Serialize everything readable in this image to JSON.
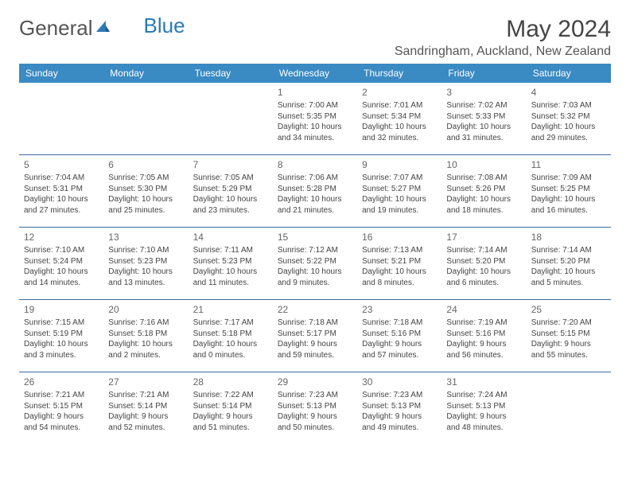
{
  "logo": {
    "text1": "General",
    "text2": "Blue"
  },
  "title": "May 2024",
  "location": "Sandringham, Auckland, New Zealand",
  "colors": {
    "header_bg": "#3a8ac3",
    "header_text": "#ffffff",
    "row_border": "#3a6a9a",
    "day_num": "#666666",
    "body_text": "#444444",
    "logo_gray": "#555555",
    "logo_blue": "#2a7ab8"
  },
  "day_headers": [
    "Sunday",
    "Monday",
    "Tuesday",
    "Wednesday",
    "Thursday",
    "Friday",
    "Saturday"
  ],
  "weeks": [
    [
      {
        "num": "",
        "sunrise": "",
        "sunset": "",
        "daylight": ""
      },
      {
        "num": "",
        "sunrise": "",
        "sunset": "",
        "daylight": ""
      },
      {
        "num": "",
        "sunrise": "",
        "sunset": "",
        "daylight": ""
      },
      {
        "num": "1",
        "sunrise": "Sunrise: 7:00 AM",
        "sunset": "Sunset: 5:35 PM",
        "daylight": "Daylight: 10 hours and 34 minutes."
      },
      {
        "num": "2",
        "sunrise": "Sunrise: 7:01 AM",
        "sunset": "Sunset: 5:34 PM",
        "daylight": "Daylight: 10 hours and 32 minutes."
      },
      {
        "num": "3",
        "sunrise": "Sunrise: 7:02 AM",
        "sunset": "Sunset: 5:33 PM",
        "daylight": "Daylight: 10 hours and 31 minutes."
      },
      {
        "num": "4",
        "sunrise": "Sunrise: 7:03 AM",
        "sunset": "Sunset: 5:32 PM",
        "daylight": "Daylight: 10 hours and 29 minutes."
      }
    ],
    [
      {
        "num": "5",
        "sunrise": "Sunrise: 7:04 AM",
        "sunset": "Sunset: 5:31 PM",
        "daylight": "Daylight: 10 hours and 27 minutes."
      },
      {
        "num": "6",
        "sunrise": "Sunrise: 7:05 AM",
        "sunset": "Sunset: 5:30 PM",
        "daylight": "Daylight: 10 hours and 25 minutes."
      },
      {
        "num": "7",
        "sunrise": "Sunrise: 7:05 AM",
        "sunset": "Sunset: 5:29 PM",
        "daylight": "Daylight: 10 hours and 23 minutes."
      },
      {
        "num": "8",
        "sunrise": "Sunrise: 7:06 AM",
        "sunset": "Sunset: 5:28 PM",
        "daylight": "Daylight: 10 hours and 21 minutes."
      },
      {
        "num": "9",
        "sunrise": "Sunrise: 7:07 AM",
        "sunset": "Sunset: 5:27 PM",
        "daylight": "Daylight: 10 hours and 19 minutes."
      },
      {
        "num": "10",
        "sunrise": "Sunrise: 7:08 AM",
        "sunset": "Sunset: 5:26 PM",
        "daylight": "Daylight: 10 hours and 18 minutes."
      },
      {
        "num": "11",
        "sunrise": "Sunrise: 7:09 AM",
        "sunset": "Sunset: 5:25 PM",
        "daylight": "Daylight: 10 hours and 16 minutes."
      }
    ],
    [
      {
        "num": "12",
        "sunrise": "Sunrise: 7:10 AM",
        "sunset": "Sunset: 5:24 PM",
        "daylight": "Daylight: 10 hours and 14 minutes."
      },
      {
        "num": "13",
        "sunrise": "Sunrise: 7:10 AM",
        "sunset": "Sunset: 5:23 PM",
        "daylight": "Daylight: 10 hours and 13 minutes."
      },
      {
        "num": "14",
        "sunrise": "Sunrise: 7:11 AM",
        "sunset": "Sunset: 5:23 PM",
        "daylight": "Daylight: 10 hours and 11 minutes."
      },
      {
        "num": "15",
        "sunrise": "Sunrise: 7:12 AM",
        "sunset": "Sunset: 5:22 PM",
        "daylight": "Daylight: 10 hours and 9 minutes."
      },
      {
        "num": "16",
        "sunrise": "Sunrise: 7:13 AM",
        "sunset": "Sunset: 5:21 PM",
        "daylight": "Daylight: 10 hours and 8 minutes."
      },
      {
        "num": "17",
        "sunrise": "Sunrise: 7:14 AM",
        "sunset": "Sunset: 5:20 PM",
        "daylight": "Daylight: 10 hours and 6 minutes."
      },
      {
        "num": "18",
        "sunrise": "Sunrise: 7:14 AM",
        "sunset": "Sunset: 5:20 PM",
        "daylight": "Daylight: 10 hours and 5 minutes."
      }
    ],
    [
      {
        "num": "19",
        "sunrise": "Sunrise: 7:15 AM",
        "sunset": "Sunset: 5:19 PM",
        "daylight": "Daylight: 10 hours and 3 minutes."
      },
      {
        "num": "20",
        "sunrise": "Sunrise: 7:16 AM",
        "sunset": "Sunset: 5:18 PM",
        "daylight": "Daylight: 10 hours and 2 minutes."
      },
      {
        "num": "21",
        "sunrise": "Sunrise: 7:17 AM",
        "sunset": "Sunset: 5:18 PM",
        "daylight": "Daylight: 10 hours and 0 minutes."
      },
      {
        "num": "22",
        "sunrise": "Sunrise: 7:18 AM",
        "sunset": "Sunset: 5:17 PM",
        "daylight": "Daylight: 9 hours and 59 minutes."
      },
      {
        "num": "23",
        "sunrise": "Sunrise: 7:18 AM",
        "sunset": "Sunset: 5:16 PM",
        "daylight": "Daylight: 9 hours and 57 minutes."
      },
      {
        "num": "24",
        "sunrise": "Sunrise: 7:19 AM",
        "sunset": "Sunset: 5:16 PM",
        "daylight": "Daylight: 9 hours and 56 minutes."
      },
      {
        "num": "25",
        "sunrise": "Sunrise: 7:20 AM",
        "sunset": "Sunset: 5:15 PM",
        "daylight": "Daylight: 9 hours and 55 minutes."
      }
    ],
    [
      {
        "num": "26",
        "sunrise": "Sunrise: 7:21 AM",
        "sunset": "Sunset: 5:15 PM",
        "daylight": "Daylight: 9 hours and 54 minutes."
      },
      {
        "num": "27",
        "sunrise": "Sunrise: 7:21 AM",
        "sunset": "Sunset: 5:14 PM",
        "daylight": "Daylight: 9 hours and 52 minutes."
      },
      {
        "num": "28",
        "sunrise": "Sunrise: 7:22 AM",
        "sunset": "Sunset: 5:14 PM",
        "daylight": "Daylight: 9 hours and 51 minutes."
      },
      {
        "num": "29",
        "sunrise": "Sunrise: 7:23 AM",
        "sunset": "Sunset: 5:13 PM",
        "daylight": "Daylight: 9 hours and 50 minutes."
      },
      {
        "num": "30",
        "sunrise": "Sunrise: 7:23 AM",
        "sunset": "Sunset: 5:13 PM",
        "daylight": "Daylight: 9 hours and 49 minutes."
      },
      {
        "num": "31",
        "sunrise": "Sunrise: 7:24 AM",
        "sunset": "Sunset: 5:13 PM",
        "daylight": "Daylight: 9 hours and 48 minutes."
      },
      {
        "num": "",
        "sunrise": "",
        "sunset": "",
        "daylight": ""
      }
    ]
  ]
}
